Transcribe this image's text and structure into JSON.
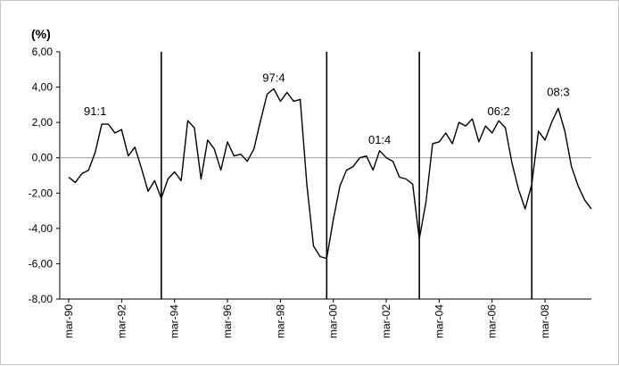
{
  "chart_data": {
    "type": "line",
    "unit_label": "(%)",
    "y_ticks": [
      "6,00",
      "4,00",
      "2,00",
      "0,00",
      "-2,00",
      "-4,00",
      "-6,00",
      "-8,00"
    ],
    "y_tick_values": [
      6,
      4,
      2,
      0,
      -2,
      -4,
      -6,
      -8
    ],
    "ylim": [
      -8,
      6
    ],
    "x_tick_labels": [
      "mar-90",
      "mar-92",
      "mar-94",
      "mar-96",
      "mar-98",
      "mar-00",
      "mar-02",
      "mar-04",
      "mar-06",
      "mar-08"
    ],
    "x_start": "1990Q1",
    "x_end": "2009Q4",
    "grid": false,
    "zero_line": true,
    "colors": {
      "line": "#000000",
      "zero_line": "#9a9a9a",
      "axis": "#000000"
    },
    "series": [
      {
        "values": [
          -1.1,
          -1.4,
          -0.9,
          -0.7,
          0.3,
          1.9,
          1.9,
          1.4,
          1.6,
          0.1,
          0.6,
          -0.6,
          -1.9,
          -1.3,
          -2.3,
          -1.2,
          -0.8,
          -1.3,
          2.1,
          1.7,
          -1.2,
          1.0,
          0.5,
          -0.7,
          0.9,
          0.1,
          0.2,
          -0.2,
          0.5,
          2.1,
          3.6,
          3.9,
          3.2,
          3.7,
          3.2,
          3.3,
          -1.5,
          -5.0,
          -5.6,
          -5.7,
          -3.5,
          -1.6,
          -0.7,
          -0.5,
          0.0,
          0.1,
          -0.7,
          0.4,
          0.0,
          -0.2,
          -1.1,
          -1.2,
          -1.5,
          -4.6,
          -2.5,
          0.8,
          0.9,
          1.4,
          0.8,
          2.0,
          1.8,
          2.2,
          0.9,
          1.8,
          1.4,
          2.1,
          1.7,
          -0.3,
          -1.8,
          -2.9,
          -1.5,
          1.5,
          1.0,
          2.0,
          2.8,
          1.5,
          -0.5,
          -1.6,
          -2.4,
          -2.9
        ]
      }
    ],
    "vertical_markers": [
      {
        "x": "1993Q3"
      },
      {
        "x": "1999Q4"
      },
      {
        "x": "2003Q2"
      },
      {
        "x": "2007Q3"
      }
    ],
    "annotations": [
      {
        "text": "91:1",
        "x": "1991Q1",
        "y": 2.2
      },
      {
        "text": "97:4",
        "x": "1997Q4",
        "y": 4.1
      },
      {
        "text": "01:4",
        "x": "2001Q4",
        "y": 0.6
      },
      {
        "text": "06:2",
        "x": "2006Q2",
        "y": 2.2
      },
      {
        "text": "08:3",
        "x": "2008Q3",
        "y": 3.3
      }
    ]
  }
}
